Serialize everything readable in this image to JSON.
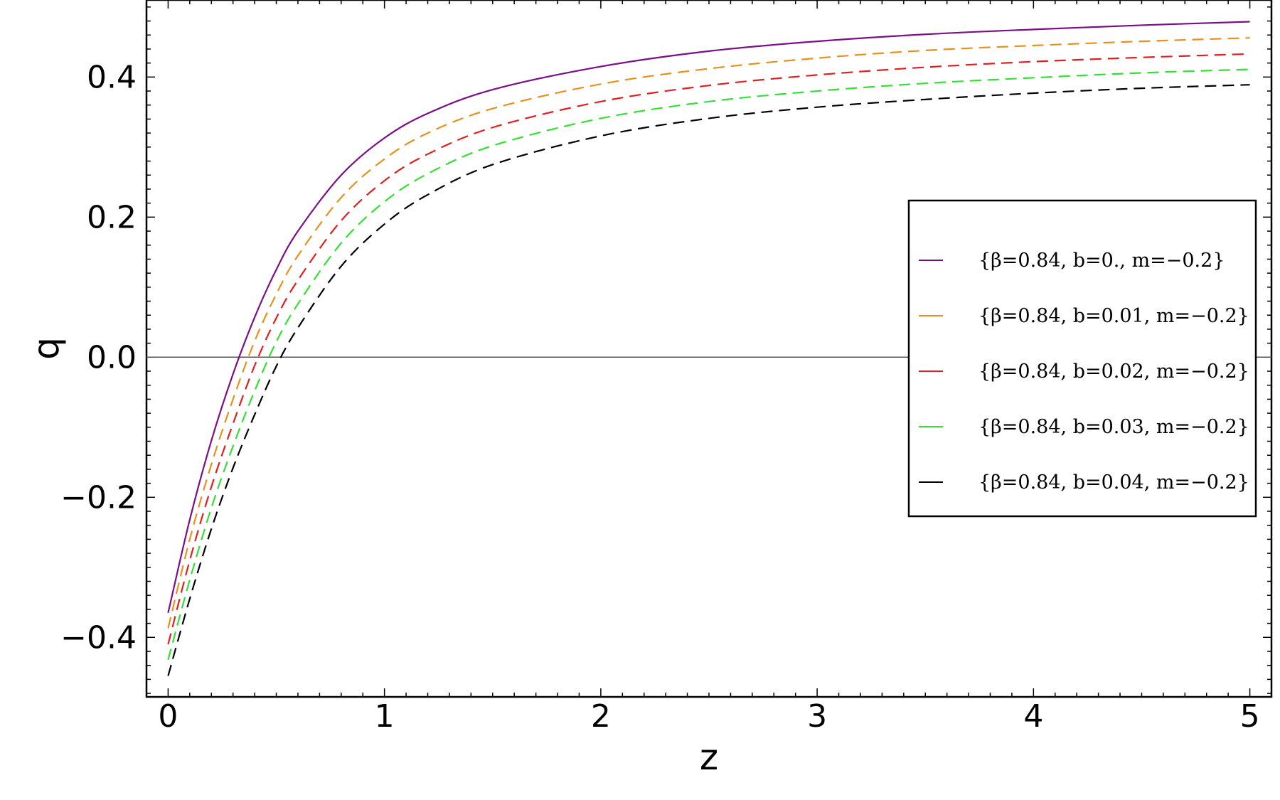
{
  "chart_data": {
    "type": "line",
    "title": "",
    "xlabel": "z",
    "ylabel": "q",
    "xlim": [
      -0.1,
      5.1
    ],
    "ylim": [
      -0.485,
      0.51
    ],
    "grid": false,
    "legend_position": "right",
    "x_ticks": [
      {
        "value": 0,
        "label": "0"
      },
      {
        "value": 1,
        "label": "1"
      },
      {
        "value": 2,
        "label": "2"
      },
      {
        "value": 3,
        "label": "3"
      },
      {
        "value": 4,
        "label": "4"
      },
      {
        "value": 5,
        "label": "5"
      }
    ],
    "y_ticks": [
      {
        "value": -0.4,
        "label": "−0.4"
      },
      {
        "value": -0.2,
        "label": "−0.2"
      },
      {
        "value": 0.0,
        "label": "0.0"
      },
      {
        "value": 0.2,
        "label": "0.2"
      },
      {
        "value": 0.4,
        "label": "0.4"
      }
    ],
    "x": [
      0,
      0.1,
      0.2,
      0.3,
      0.4,
      0.5,
      0.6,
      0.8,
      1.0,
      1.2,
      1.5,
      2.0,
      2.5,
      3.0,
      3.5,
      4.0,
      4.5,
      5.0
    ],
    "series": [
      {
        "name": "{β=0.84, b=0., m=−0.2}",
        "color": "#7a0f86",
        "dashed": false,
        "values": [
          -0.365,
          -0.232,
          -0.119,
          -0.024,
          0.057,
          0.125,
          0.18,
          0.26,
          0.313,
          0.348,
          0.382,
          0.415,
          0.437,
          0.451,
          0.461,
          0.468,
          0.474,
          0.479
        ]
      },
      {
        "name": "{β=0.84, b=0.01, m=−0.2}",
        "color": "#e8901e",
        "dashed": true,
        "values": [
          -0.387,
          -0.26,
          -0.153,
          -0.06,
          0.023,
          0.09,
          0.145,
          0.228,
          0.283,
          0.32,
          0.355,
          0.39,
          0.412,
          0.427,
          0.438,
          0.445,
          0.451,
          0.456
        ]
      },
      {
        "name": "{β=0.84, b=0.02, m=−0.2}",
        "color": "#e02020",
        "dashed": true,
        "values": [
          -0.41,
          -0.29,
          -0.185,
          -0.095,
          -0.012,
          0.056,
          0.11,
          0.195,
          0.252,
          0.29,
          0.328,
          0.365,
          0.388,
          0.403,
          0.414,
          0.422,
          0.428,
          0.433
        ]
      },
      {
        "name": "{β=0.84, b=0.03, m=−0.2}",
        "color": "#33e033",
        "dashed": true,
        "values": [
          -0.432,
          -0.318,
          -0.215,
          -0.127,
          -0.048,
          0.022,
          0.076,
          0.163,
          0.222,
          0.262,
          0.302,
          0.341,
          0.365,
          0.38,
          0.391,
          0.399,
          0.406,
          0.411
        ]
      },
      {
        "name": "{β=0.84, b=0.04, m=−0.2}",
        "color": "#000000",
        "dashed": true,
        "values": [
          -0.455,
          -0.345,
          -0.245,
          -0.158,
          -0.082,
          -0.013,
          0.042,
          0.13,
          0.19,
          0.232,
          0.275,
          0.316,
          0.341,
          0.357,
          0.368,
          0.377,
          0.384,
          0.389
        ]
      }
    ]
  }
}
